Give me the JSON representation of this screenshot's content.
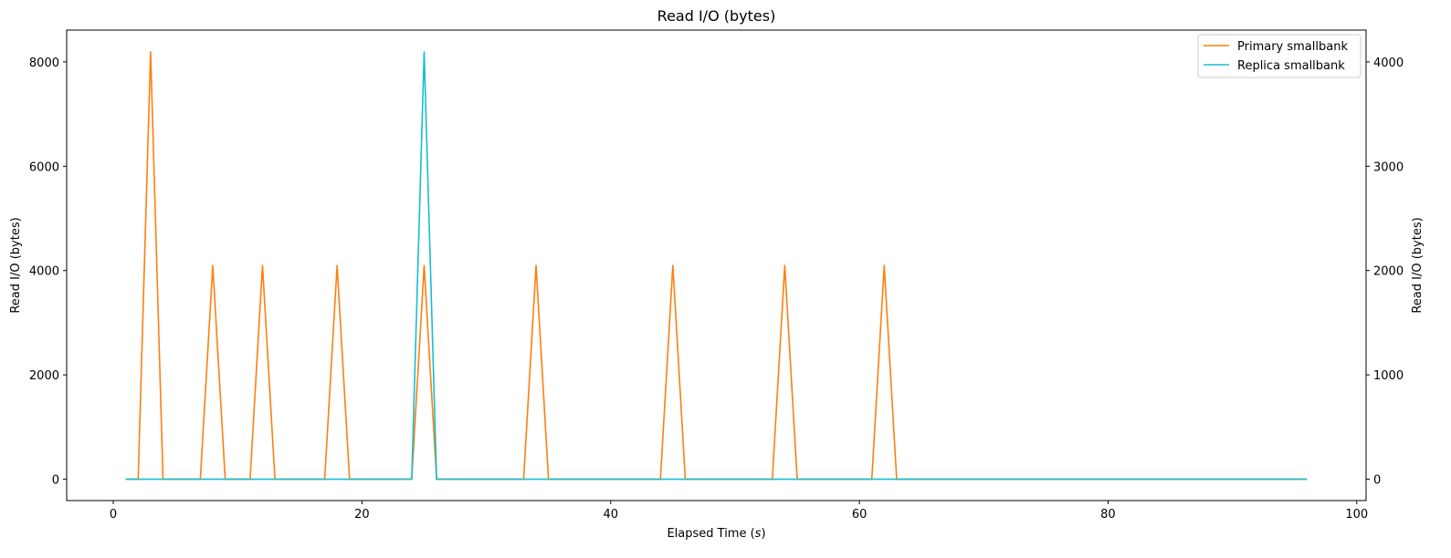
{
  "chart_data": {
    "type": "line",
    "title": "Read I/O (bytes)",
    "xlabel": "Elapsed Time (s)",
    "ylabel_left": "Read I/O (bytes)",
    "ylabel_right": "Read I/O (bytes)",
    "xlim": [
      -3.75,
      100.75
    ],
    "ylim_left": [
      -410,
      8610
    ],
    "ylim_right": [
      -205,
      4305
    ],
    "xticks": [
      0,
      20,
      40,
      60,
      80,
      100
    ],
    "yticks_left": [
      0,
      2000,
      4000,
      6000,
      8000
    ],
    "yticks_right": [
      0,
      1000,
      2000,
      3000,
      4000
    ],
    "legend_position": "top-right",
    "series": [
      {
        "name": "Primary smallbank",
        "axis": "left",
        "color": "#ff7f0e",
        "x": [
          1,
          2,
          3,
          4,
          5,
          6,
          7,
          8,
          9,
          10,
          11,
          12,
          13,
          14,
          15,
          16,
          17,
          18,
          19,
          20,
          21,
          22,
          23,
          24,
          25,
          26,
          27,
          28,
          29,
          30,
          31,
          32,
          33,
          34,
          35,
          36,
          37,
          38,
          39,
          40,
          41,
          42,
          43,
          44,
          45,
          46,
          47,
          48,
          49,
          50,
          51,
          52,
          53,
          54,
          55,
          56,
          57,
          58,
          59,
          60,
          61,
          62,
          63,
          64,
          65,
          66,
          67,
          68,
          69,
          70,
          71,
          72,
          73,
          74,
          75,
          76,
          77,
          78,
          79,
          80,
          81,
          82,
          83,
          84,
          85,
          86,
          87,
          88,
          89,
          90,
          91,
          92,
          93,
          94,
          95,
          96
        ],
        "y": [
          0,
          0,
          8192,
          0,
          0,
          0,
          0,
          4096,
          0,
          0,
          0,
          4096,
          0,
          0,
          0,
          0,
          0,
          4096,
          0,
          0,
          0,
          0,
          0,
          0,
          4096,
          0,
          0,
          0,
          0,
          0,
          0,
          0,
          0,
          4096,
          0,
          0,
          0,
          0,
          0,
          0,
          0,
          0,
          0,
          0,
          4096,
          0,
          0,
          0,
          0,
          0,
          0,
          0,
          0,
          4096,
          0,
          0,
          0,
          0,
          0,
          0,
          0,
          4096,
          0,
          0,
          0,
          0,
          0,
          0,
          0,
          0,
          0,
          0,
          0,
          0,
          0,
          0,
          0,
          0,
          0,
          0,
          0,
          0,
          0,
          0,
          0,
          0,
          0,
          0,
          0,
          0,
          0,
          0,
          0,
          0,
          0,
          0
        ]
      },
      {
        "name": "Replica smallbank",
        "axis": "right",
        "color": "#17becf",
        "x": [
          1,
          2,
          3,
          4,
          5,
          6,
          7,
          8,
          9,
          10,
          11,
          12,
          13,
          14,
          15,
          16,
          17,
          18,
          19,
          20,
          21,
          22,
          23,
          24,
          25,
          26,
          27,
          28,
          29,
          30,
          31,
          32,
          33,
          34,
          35,
          36,
          37,
          38,
          39,
          40,
          41,
          42,
          43,
          44,
          45,
          46,
          47,
          48,
          49,
          50,
          51,
          52,
          53,
          54,
          55,
          56,
          57,
          58,
          59,
          60,
          61,
          62,
          63,
          64,
          65,
          66,
          67,
          68,
          69,
          70,
          71,
          72,
          73,
          74,
          75,
          76,
          77,
          78,
          79,
          80,
          81,
          82,
          83,
          84,
          85,
          86,
          87,
          88,
          89,
          90,
          91,
          92,
          93,
          94,
          95,
          96
        ],
        "y": [
          0,
          0,
          0,
          0,
          0,
          0,
          0,
          0,
          0,
          0,
          0,
          0,
          0,
          0,
          0,
          0,
          0,
          0,
          0,
          0,
          0,
          0,
          0,
          0,
          4096,
          0,
          0,
          0,
          0,
          0,
          0,
          0,
          0,
          0,
          0,
          0,
          0,
          0,
          0,
          0,
          0,
          0,
          0,
          0,
          0,
          0,
          0,
          0,
          0,
          0,
          0,
          0,
          0,
          0,
          0,
          0,
          0,
          0,
          0,
          0,
          0,
          0,
          0,
          0,
          0,
          0,
          0,
          0,
          0,
          0,
          0,
          0,
          0,
          0,
          0,
          0,
          0,
          0,
          0,
          0,
          0,
          0,
          0,
          0,
          0,
          0,
          0,
          0,
          0,
          0,
          0,
          0,
          0,
          0,
          0,
          0
        ]
      }
    ]
  }
}
